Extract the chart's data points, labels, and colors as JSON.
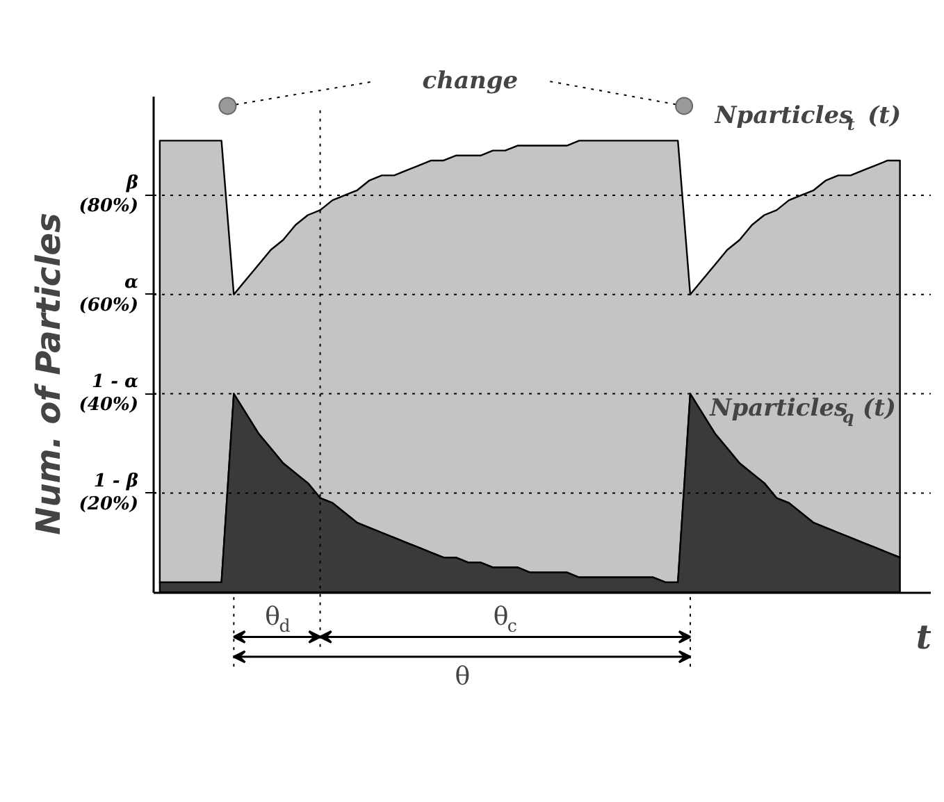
{
  "chart_data": {
    "type": "area",
    "ylabel": "Num. of Particles",
    "xlabel": "t",
    "categories": [
      null,
      null,
      null,
      null,
      null,
      null,
      null,
      null,
      null,
      null,
      null,
      null,
      null,
      null,
      null,
      null,
      null,
      null,
      null,
      null,
      null,
      null,
      null,
      null,
      null,
      null,
      null,
      null,
      null,
      null,
      null,
      null,
      null,
      null,
      null,
      null,
      null,
      null,
      null,
      null,
      null,
      null,
      null,
      null,
      null,
      null,
      null,
      null,
      null,
      null,
      null,
      null,
      null,
      null,
      null,
      null,
      null,
      null,
      null,
      null,
      null
    ],
    "series": [
      {
        "name": "Nparticles$_{t}$ (t)",
        "color": "#c4c4c4",
        "values": [
          91,
          91,
          91,
          91,
          91,
          91,
          60,
          63,
          66,
          69,
          71,
          74,
          76,
          77,
          79,
          80,
          81,
          83,
          84,
          84,
          85,
          86,
          87,
          87,
          88,
          88,
          88,
          89,
          89,
          90,
          90,
          90,
          90,
          90,
          91,
          91,
          91,
          91,
          91,
          91,
          91,
          91,
          91,
          60,
          63,
          66,
          69,
          71,
          74,
          76,
          77,
          79,
          80,
          81,
          83,
          84,
          84,
          85,
          86,
          87,
          87
        ]
      },
      {
        "name": "Nparticles$_{q}$ (t)",
        "color": "#3a3a3a",
        "values": [
          2,
          2,
          2,
          2,
          2,
          2,
          40,
          36,
          32,
          29,
          26,
          24,
          22,
          19,
          18,
          16,
          14,
          13,
          12,
          11,
          10,
          9,
          8,
          7,
          7,
          6,
          6,
          5,
          5,
          5,
          4,
          4,
          4,
          4,
          3,
          3,
          3,
          3,
          3,
          3,
          3,
          2,
          2,
          40,
          36,
          32,
          29,
          26,
          24,
          22,
          19,
          18,
          16,
          14,
          13,
          12,
          11,
          10,
          9,
          8,
          7
        ]
      }
    ],
    "ylim": [
      0,
      100
    ],
    "yticks": [
      {
        "value": 20,
        "label": "1 - β\n(20%)"
      },
      {
        "value": 40,
        "label": "1 - α\n(40%)"
      },
      {
        "value": 60,
        "label": "α\n(60%)"
      },
      {
        "value": 80,
        "label": "β\n(80%)"
      }
    ],
    "ref_lines": [
      {
        "axis": "y",
        "value": 80,
        "line_style": "dotted"
      },
      {
        "axis": "y",
        "value": 60,
        "line_style": "dotted"
      },
      {
        "axis": "y",
        "value": 40,
        "line_style": "dotted"
      },
      {
        "axis": "y",
        "value": 20,
        "line_style": "dotted"
      }
    ],
    "annotations": [
      "change",
      "θ$_{d}$",
      "θ$_{c}$",
      "θ"
    ],
    "tick_labels": "y",
    "grid": false,
    "line_style": "solid"
  }
}
